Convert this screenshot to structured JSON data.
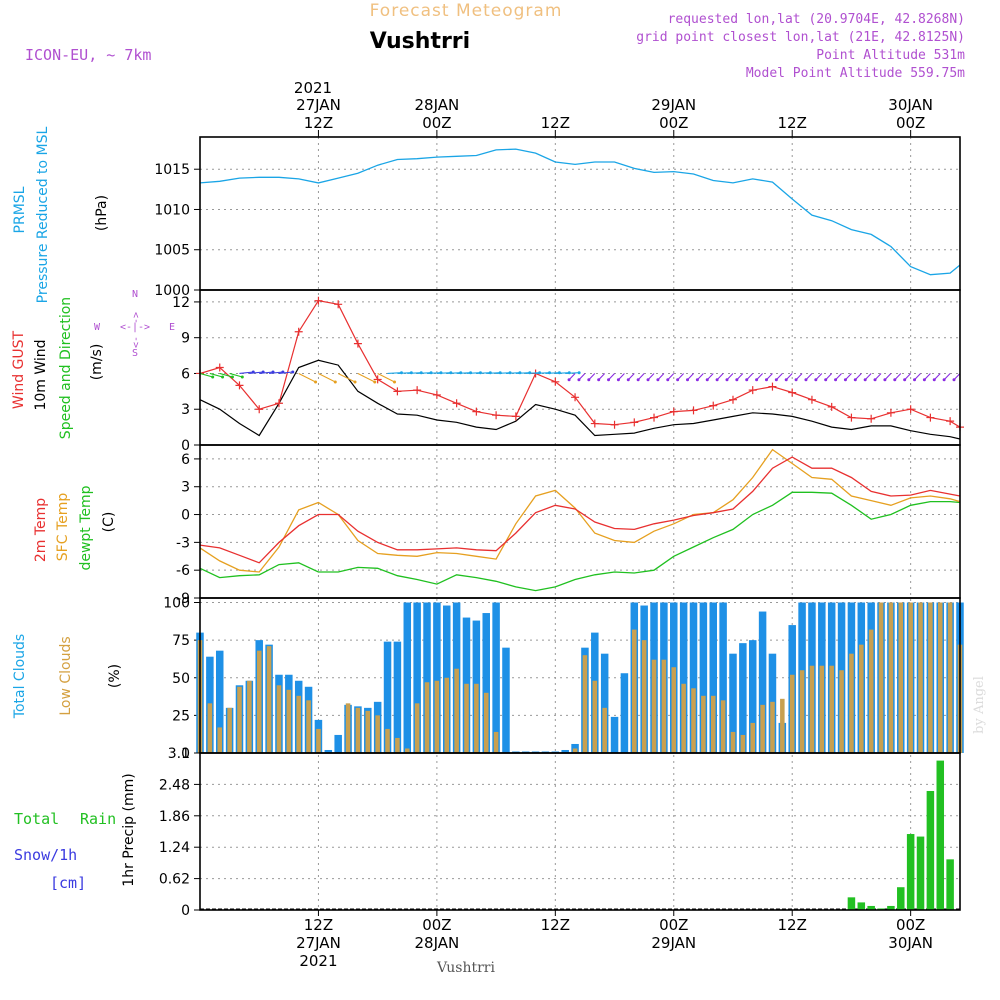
{
  "header": {
    "product": "Forecast Meteogram",
    "location": "Vushtrri",
    "model": "ICON-EU, ~ 7km",
    "requested": "requested lon,lat (20.9704E, 42.8268N)",
    "grid": "grid point closest lon,lat (21E, 42.8125N)",
    "point_alt": "Point Altitude 531m",
    "model_alt": "Model Point Altitude 559.75m",
    "footer": "Vushtrri",
    "credit": "by Angel"
  },
  "time_axis": {
    "top_year": "2021",
    "labels": [
      {
        "hour": 12,
        "l1": "27JAN",
        "l2": "12Z",
        "b1": "12Z",
        "b2": "27JAN",
        "b3": "2021"
      },
      {
        "hour": 24,
        "l1": "28JAN",
        "l2": "00Z",
        "b1": "00Z",
        "b2": "28JAN"
      },
      {
        "hour": 36,
        "l2": "12Z",
        "b1": "12Z"
      },
      {
        "hour": 48,
        "l1": "29JAN",
        "l2": "00Z",
        "b1": "00Z",
        "b2": "29JAN"
      },
      {
        "hour": 60,
        "l2": "12Z",
        "b1": "12Z"
      },
      {
        "hour": 72,
        "l1": "30JAN",
        "l2": "00Z",
        "b1": "00Z",
        "b2": "30JAN"
      }
    ],
    "range_hours": [
      0,
      77
    ]
  },
  "panel_labels": {
    "p1": {
      "a": "PRMSL",
      "b": "Pressure Reduced to MSL",
      "unit": "(hPa)"
    },
    "p2": {
      "a": "Wind GUST",
      "b": "10m Wind",
      "c": "Speed and Direction",
      "unit": "(m/s)",
      "compass_n": "N",
      "compass_s": "S",
      "compass_w": "W",
      "compass_e": "E"
    },
    "p3": {
      "a": "2m Temp",
      "b": "SFC Temp",
      "c": "dewpt Temp",
      "unit": "(C)"
    },
    "p4": {
      "a": "Total Clouds",
      "b": "Low Clouds",
      "unit": "(%)"
    },
    "p5": {
      "a": "Total",
      "b": "Rain",
      "c": "Snow/1h",
      "d": "[cm]",
      "unit": "1hr Precip (mm)"
    }
  },
  "colors": {
    "pressure": "#1aa5e6",
    "gust": "#e83030",
    "wind": "#000000",
    "temp2m": "#e83030",
    "sfc": "#e6a020",
    "dewpt": "#20c020",
    "total_clouds": "#1e90e6",
    "low_clouds": "#c8a050",
    "rain": "#22c022",
    "snow": "#3a3ae0",
    "title_orange": "#f0c080",
    "purple": "#b050d0"
  },
  "chart_data": [
    {
      "type": "line",
      "name": "PRMSL",
      "ylim": [
        1000,
        1019
      ],
      "yticks": [
        1000,
        1005,
        1010,
        1015
      ],
      "x": [
        0,
        2,
        4,
        6,
        8,
        10,
        12,
        14,
        16,
        18,
        20,
        22,
        24,
        26,
        28,
        30,
        32,
        34,
        36,
        38,
        40,
        42,
        44,
        46,
        48,
        50,
        52,
        54,
        56,
        58,
        60,
        62,
        64,
        66,
        68,
        70,
        72,
        74,
        76,
        77
      ],
      "values": [
        1013.3,
        1013.5,
        1013.9,
        1014.0,
        1014.0,
        1013.8,
        1013.3,
        1013.9,
        1014.5,
        1015.5,
        1016.2,
        1016.3,
        1016.5,
        1016.6,
        1016.7,
        1017.4,
        1017.5,
        1017.0,
        1015.9,
        1015.6,
        1015.9,
        1015.9,
        1015.1,
        1014.6,
        1014.7,
        1014.4,
        1013.6,
        1013.3,
        1013.8,
        1013.4,
        1011.3,
        1009.3,
        1008.6,
        1007.5,
        1006.9,
        1005.4,
        1002.9,
        1001.9,
        1002.1,
        1003.1
      ]
    },
    {
      "type": "line",
      "name": "Wind GUST / 10m Wind",
      "ylim": [
        0,
        13
      ],
      "yticks": [
        0,
        3,
        6,
        9,
        12
      ],
      "x": [
        0,
        2,
        4,
        6,
        8,
        10,
        12,
        14,
        16,
        18,
        20,
        22,
        24,
        26,
        28,
        30,
        32,
        34,
        36,
        38,
        40,
        42,
        44,
        46,
        48,
        50,
        52,
        54,
        56,
        58,
        60,
        62,
        64,
        66,
        68,
        70,
        72,
        74,
        76,
        77
      ],
      "gust": [
        6.0,
        6.5,
        5.0,
        3.0,
        3.5,
        9.5,
        12.1,
        11.8,
        8.5,
        5.5,
        4.5,
        4.6,
        4.2,
        3.5,
        2.8,
        2.5,
        2.4,
        6.0,
        5.3,
        4.0,
        1.8,
        1.7,
        1.9,
        2.3,
        2.8,
        2.9,
        3.3,
        3.8,
        4.6,
        4.9,
        4.4,
        3.8,
        3.2,
        2.3,
        2.2,
        2.7,
        3.0,
        2.3,
        2.0,
        1.5
      ],
      "wind": [
        3.8,
        3.0,
        1.8,
        0.8,
        3.5,
        6.5,
        7.1,
        6.7,
        4.5,
        3.5,
        2.6,
        2.5,
        2.1,
        1.9,
        1.5,
        1.3,
        2.0,
        3.4,
        3.0,
        2.5,
        0.8,
        0.9,
        1.0,
        1.4,
        1.7,
        1.8,
        2.1,
        2.4,
        2.7,
        2.6,
        2.4,
        2.0,
        1.5,
        1.3,
        1.6,
        1.6,
        1.2,
        0.9,
        0.7,
        0.5
      ]
    },
    {
      "type": "line",
      "name": "Temperatures",
      "ylim": [
        -9,
        7.5
      ],
      "yticks": [
        -9,
        -6,
        -3,
        0,
        3,
        6
      ],
      "x": [
        0,
        2,
        4,
        6,
        8,
        10,
        12,
        14,
        16,
        18,
        20,
        22,
        24,
        26,
        28,
        30,
        32,
        34,
        36,
        38,
        40,
        42,
        44,
        46,
        48,
        50,
        52,
        54,
        56,
        58,
        60,
        62,
        64,
        66,
        68,
        70,
        72,
        74,
        76,
        77
      ],
      "temp2m": [
        -3.3,
        -3.6,
        -4.4,
        -5.2,
        -3.0,
        -1.2,
        0.0,
        0.0,
        -1.8,
        -3.0,
        -3.8,
        -3.8,
        -3.7,
        -3.6,
        -3.8,
        -3.9,
        -2.0,
        0.2,
        1.0,
        0.6,
        -0.8,
        -1.5,
        -1.6,
        -1.0,
        -0.6,
        -0.1,
        0.2,
        0.6,
        2.5,
        5.0,
        6.2,
        5.0,
        5.0,
        4.0,
        2.5,
        2.0,
        2.1,
        2.6,
        2.2,
        2.0
      ],
      "sfc": [
        -3.6,
        -5.0,
        -6.0,
        -6.2,
        -3.5,
        0.5,
        1.3,
        0.0,
        -2.8,
        -4.2,
        -4.4,
        -4.5,
        -4.1,
        -4.2,
        -4.5,
        -4.8,
        -1.0,
        2.0,
        2.6,
        0.7,
        -2.0,
        -2.8,
        -3.0,
        -1.8,
        -1.0,
        0.0,
        0.2,
        1.6,
        4.0,
        7.0,
        5.5,
        4.0,
        3.8,
        2.0,
        1.5,
        1.0,
        1.8,
        2.0,
        1.7,
        1.4
      ],
      "dewpt": [
        -5.8,
        -6.8,
        -6.6,
        -6.5,
        -5.4,
        -5.2,
        -6.2,
        -6.2,
        -5.7,
        -5.8,
        -6.6,
        -7.0,
        -7.5,
        -6.5,
        -6.8,
        -7.2,
        -7.8,
        -8.2,
        -7.8,
        -7.0,
        -6.5,
        -6.2,
        -6.3,
        -6.0,
        -4.5,
        -3.5,
        -2.5,
        -1.6,
        0.0,
        1.0,
        2.4,
        2.4,
        2.3,
        1.0,
        -0.5,
        0.0,
        1.0,
        1.4,
        1.4,
        1.3
      ]
    },
    {
      "type": "bar",
      "name": "Clouds",
      "ylim": [
        0,
        103
      ],
      "yticks": [
        0,
        25,
        50,
        75,
        100
      ],
      "x": [
        0,
        1,
        2,
        3,
        4,
        5,
        6,
        7,
        8,
        9,
        10,
        11,
        12,
        13,
        14,
        15,
        16,
        17,
        18,
        19,
        20,
        21,
        22,
        23,
        24,
        25,
        26,
        27,
        28,
        29,
        30,
        31,
        32,
        33,
        34,
        35,
        36,
        37,
        38,
        39,
        40,
        41,
        42,
        43,
        44,
        45,
        46,
        47,
        48,
        49,
        50,
        51,
        52,
        53,
        54,
        55,
        56,
        57,
        58,
        59,
        60,
        61,
        62,
        63,
        64,
        65,
        66,
        67,
        68,
        69,
        70,
        71,
        72,
        73,
        74,
        75,
        76,
        77
      ],
      "total": [
        80,
        64,
        68,
        30,
        45,
        48,
        75,
        72,
        52,
        52,
        48,
        44,
        22,
        2,
        12,
        32,
        31,
        30,
        34,
        74,
        74,
        100,
        100,
        100,
        100,
        98,
        100,
        90,
        88,
        93,
        100,
        70,
        1,
        1,
        1,
        1,
        1,
        2,
        6,
        70,
        80,
        66,
        24,
        53,
        100,
        98,
        100,
        100,
        100,
        100,
        100,
        100,
        100,
        100,
        66,
        73,
        75,
        94,
        66,
        20,
        85,
        100,
        100,
        100,
        100,
        100,
        100,
        100,
        100,
        100,
        100,
        100,
        100,
        100,
        100,
        100,
        100,
        100
      ],
      "low": [
        75,
        33,
        17,
        30,
        44,
        48,
        68,
        71,
        45,
        42,
        38,
        35,
        16,
        0,
        0,
        33,
        30,
        28,
        25,
        16,
        10,
        3,
        33,
        47,
        48,
        50,
        56,
        46,
        46,
        40,
        14,
        0,
        0,
        0,
        0,
        0,
        0,
        0,
        3,
        65,
        48,
        30,
        0,
        0,
        82,
        75,
        62,
        62,
        57,
        46,
        43,
        38,
        38,
        35,
        14,
        12,
        20,
        32,
        34,
        36,
        52,
        55,
        58,
        58,
        58,
        55,
        66,
        72,
        82,
        100,
        100,
        100,
        100,
        100,
        100,
        100,
        100,
        72
      ]
    },
    {
      "type": "bar",
      "name": "1hr Precip",
      "ylim": [
        0,
        3.1
      ],
      "yticks": [
        0,
        0.62,
        1.24,
        1.86,
        2.48,
        3.1
      ],
      "x": [
        66,
        67,
        68,
        69,
        70,
        71,
        72,
        73,
        74,
        75,
        76,
        77
      ],
      "rain": [
        0.25,
        0.15,
        0.08,
        0.03,
        0.08,
        0.45,
        1.5,
        1.45,
        2.35,
        2.95,
        1.0,
        0.0
      ]
    }
  ]
}
